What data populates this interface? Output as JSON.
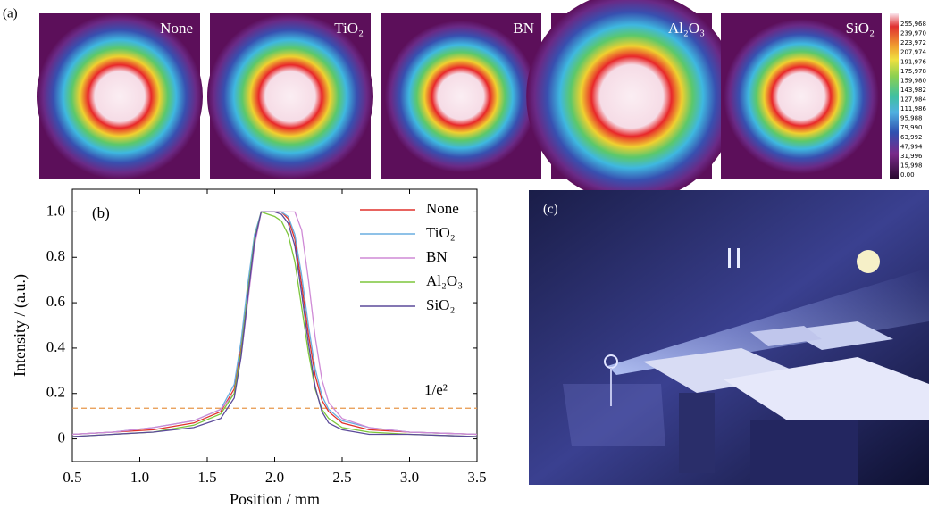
{
  "panel_a": {
    "label": "(a)",
    "labels": [
      "None",
      "TiO₂",
      "BN",
      "Al₂O₃",
      "SiO₂"
    ],
    "colorbar_ticks": [
      {
        "value": 255968,
        "label": "255,968"
      },
      {
        "value": 239970,
        "label": "239,970"
      },
      {
        "value": 223972,
        "label": "223,972"
      },
      {
        "value": 207974,
        "label": "207,974"
      },
      {
        "value": 191976,
        "label": "191,976"
      },
      {
        "value": 175978,
        "label": "175,978"
      },
      {
        "value": 159980,
        "label": "159,980"
      },
      {
        "value": 143982,
        "label": "143,982"
      },
      {
        "value": 127984,
        "label": "127,984"
      },
      {
        "value": 111986,
        "label": "111,986"
      },
      {
        "value": 95988,
        "label": "95,988"
      },
      {
        "value": 79990,
        "label": "79,990"
      },
      {
        "value": 63992,
        "label": "63,992"
      },
      {
        "value": 47994,
        "label": "47,994"
      },
      {
        "value": 31996,
        "label": "31,996"
      },
      {
        "value": 15998,
        "label": "15,998"
      },
      {
        "value": 0,
        "label": "0.00"
      }
    ]
  },
  "chart_data": {
    "type": "line",
    "panel_label": "(b)",
    "x_label": "Position / mm",
    "y_label": "Intensity / (a.u.)",
    "x": [
      0.5,
      0.8,
      1.1,
      1.4,
      1.6,
      1.7,
      1.75,
      1.8,
      1.85,
      1.9,
      1.95,
      2.0,
      2.05,
      2.1,
      2.15,
      2.2,
      2.25,
      2.3,
      2.35,
      2.4,
      2.5,
      2.7,
      3.0,
      3.5
    ],
    "series": [
      {
        "name": "None",
        "color": "#e0312b",
        "values": [
          0.02,
          0.03,
          0.04,
          0.07,
          0.12,
          0.22,
          0.4,
          0.65,
          0.88,
          1.0,
          1.0,
          1.0,
          1.0,
          0.97,
          0.88,
          0.68,
          0.46,
          0.28,
          0.17,
          0.12,
          0.07,
          0.04,
          0.03,
          0.02
        ]
      },
      {
        "name": "TiO₂",
        "color": "#6aaee0",
        "values": [
          0.02,
          0.03,
          0.05,
          0.08,
          0.13,
          0.24,
          0.43,
          0.68,
          0.9,
          1.0,
          1.0,
          1.0,
          1.0,
          0.98,
          0.9,
          0.72,
          0.5,
          0.31,
          0.19,
          0.13,
          0.08,
          0.05,
          0.03,
          0.02
        ]
      },
      {
        "name": "BN",
        "color": "#cf8ad6",
        "values": [
          0.02,
          0.03,
          0.05,
          0.08,
          0.13,
          0.2,
          0.36,
          0.6,
          0.85,
          1.0,
          1.0,
          1.0,
          1.0,
          1.0,
          1.0,
          0.92,
          0.7,
          0.45,
          0.26,
          0.16,
          0.09,
          0.05,
          0.03,
          0.02
        ]
      },
      {
        "name": "Al₂O₃",
        "color": "#7dc63b",
        "values": [
          0.01,
          0.02,
          0.03,
          0.06,
          0.11,
          0.2,
          0.38,
          0.64,
          0.88,
          1.0,
          0.99,
          0.98,
          0.96,
          0.9,
          0.78,
          0.58,
          0.38,
          0.22,
          0.13,
          0.09,
          0.05,
          0.03,
          0.02,
          0.01
        ]
      },
      {
        "name": "SiO₂",
        "color": "#5b4a9a",
        "values": [
          0.01,
          0.02,
          0.03,
          0.05,
          0.09,
          0.18,
          0.36,
          0.62,
          0.87,
          1.0,
          1.0,
          1.0,
          0.99,
          0.95,
          0.85,
          0.64,
          0.42,
          0.23,
          0.12,
          0.07,
          0.04,
          0.02,
          0.02,
          0.01
        ]
      }
    ],
    "threshold": 0.135,
    "threshold_label": "1/e²",
    "threshold_color": "#e8964a",
    "xlim": [
      0.5,
      3.5
    ],
    "xticks": [
      0.5,
      {
        "value": 1,
        "label": "1.0"
      },
      1.5,
      {
        "value": 2,
        "label": "2.0"
      },
      2.5,
      {
        "value": 3,
        "label": "3.0"
      },
      3.5
    ],
    "ylim": [
      -0.1,
      1.1
    ],
    "yticks": [
      0,
      0.2,
      0.4,
      0.6,
      0.8,
      {
        "value": 1,
        "label": "1.0"
      }
    ],
    "legend": "upper right"
  },
  "panel_c": {
    "label": "(c)"
  }
}
